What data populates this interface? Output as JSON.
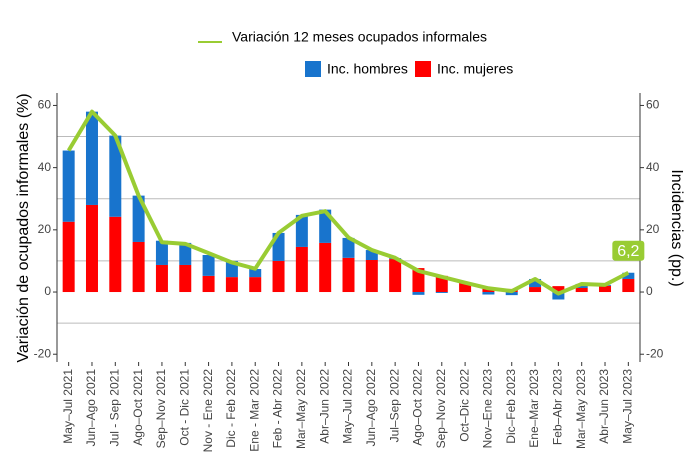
{
  "chart_data": {
    "type": "bar",
    "y_label": "Variación de ocupados informales (%)",
    "y2_label": "Incidencias (pp.)",
    "categories": [
      "May–Jul 2021",
      "Jun–Ago 2021",
      "Jul - Sep 2021",
      "Ago–Oct 2021",
      "Sep–Nov 2021",
      "Oct - Dic 2021",
      "Nov - Ene 2022",
      "Dic - Feb 2022",
      "Ene - Mar 2022",
      "Feb - Abr 2022",
      "Mar–May 2022",
      "Abr–Jun 2022",
      "May–Jul 2022",
      "Jun–Ago 2022",
      "Jul–Sep 2022",
      "Ago–Oct 2022",
      "Sep–Nov 2022",
      "Oct–Dic 2022",
      "Nov–Ene 2023",
      "Dic–Feb 2023",
      "Ene–Mar 2023",
      "Feb–Abr 2023",
      "Mar–May 2023",
      "Abr–Jun 2023",
      "May–Jul 2023"
    ],
    "series": [
      {
        "name": "Inc. mujeres",
        "color": "#ff0000",
        "axis": "y2",
        "values": [
          22.6,
          28,
          24.2,
          16.1,
          8.7,
          8.7,
          5.2,
          4.8,
          4.8,
          10,
          14.5,
          15.8,
          11,
          10.3,
          10.6,
          7.7,
          5.2,
          2.9,
          1,
          1,
          1.6,
          1.9,
          1.3,
          2,
          4.2
        ]
      },
      {
        "name": "Inc. hombres",
        "color": "#1874cd",
        "axis": "y2",
        "values": [
          22.9,
          30,
          26.1,
          14.9,
          7.8,
          7.1,
          6.7,
          5.2,
          2.6,
          9,
          10.3,
          10.7,
          6.4,
          3.2,
          0.3,
          -0.9,
          -0.3,
          0.1,
          -0.8,
          -1,
          2.6,
          -2.4,
          1.3,
          0.3,
          2
        ]
      },
      {
        "name": "Variación 12 meses ocupados informales",
        "color": "#99cc33",
        "type": "line",
        "values": [
          45.5,
          58,
          50.3,
          31,
          16,
          15.5,
          12.5,
          9.5,
          7.5,
          19,
          24.5,
          26,
          17.5,
          13.5,
          11,
          6.8,
          4.9,
          3,
          1.2,
          0.3,
          4.2,
          -0.5,
          2.6,
          2.3,
          6.2
        ]
      }
    ],
    "annotation": "6,2",
    "ylim": [
      -22.5,
      64
    ],
    "yticks": [
      -20,
      0,
      20,
      40,
      60
    ],
    "y2lim": [
      -22.5,
      64
    ],
    "y2ticks": [
      -20,
      0,
      20,
      40,
      60
    ],
    "grid_values": [
      -10,
      10,
      30,
      50
    ]
  }
}
